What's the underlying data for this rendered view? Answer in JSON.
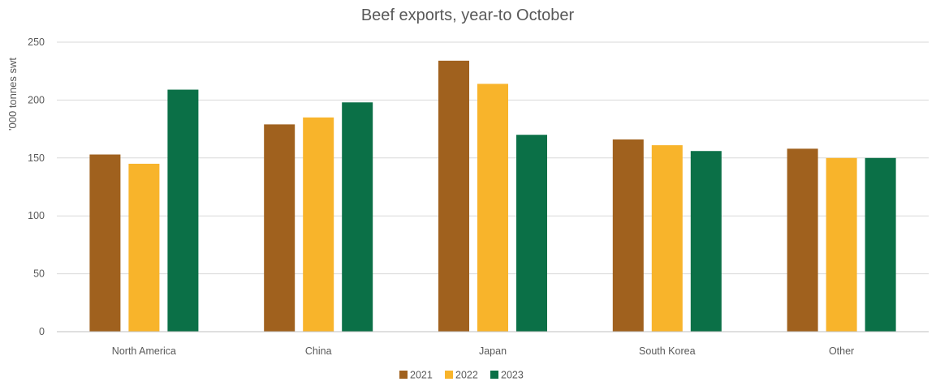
{
  "chart_data": {
    "type": "bar",
    "title": "Beef exports, year-to October",
    "xlabel": "",
    "ylabel": "'000 tonnes swt",
    "ylim": [
      0,
      250
    ],
    "yticks": [
      0,
      50,
      100,
      150,
      200,
      250
    ],
    "grid": true,
    "legend_position": "bottom",
    "categories": [
      "North America",
      "China",
      "Japan",
      "South Korea",
      "Other"
    ],
    "series": [
      {
        "name": "2021",
        "color": "#A0611E",
        "values": [
          153,
          179,
          234,
          166,
          158
        ]
      },
      {
        "name": "2022",
        "color": "#F8B42B",
        "values": [
          145,
          185,
          214,
          161,
          150
        ]
      },
      {
        "name": "2023",
        "color": "#0B7047",
        "values": [
          209,
          198,
          170,
          156,
          150
        ]
      }
    ]
  }
}
